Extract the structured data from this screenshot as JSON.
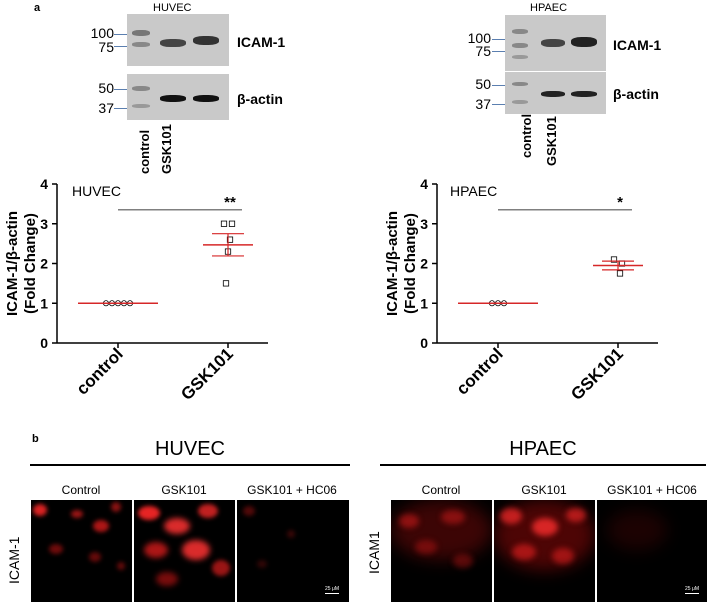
{
  "panel_a": {
    "letter": "a",
    "blots": [
      {
        "cell_line": "HUVEC",
        "icam_markers": [
          "100",
          "75"
        ],
        "actin_markers": [
          "50",
          "37"
        ],
        "icam_label": "ICAM-1",
        "actin_label": "β-actin",
        "lanes": [
          "control",
          "GSK101"
        ]
      },
      {
        "cell_line": "HPAEC",
        "icam_markers": [
          "100",
          "75"
        ],
        "actin_markers": [
          "50",
          "37"
        ],
        "icam_label": "ICAM-1",
        "actin_label": "β-actin",
        "lanes": [
          "control",
          "GSK101"
        ]
      }
    ]
  },
  "chart_data": [
    {
      "type": "scatter",
      "title": "HUVEC",
      "ylabel": "ICAM-1/β-actin (Fold Change)",
      "ylabel_lines": [
        "ICAM-1/β-actin",
        "(Fold Change)"
      ],
      "categories": [
        "control",
        "GSK101"
      ],
      "ylim": [
        0,
        4
      ],
      "yticks": [
        0,
        1,
        2,
        3,
        4
      ],
      "series": [
        {
          "category": "control",
          "points": [
            1,
            1,
            1,
            1,
            1
          ],
          "mean": 1.0,
          "sem": 0
        },
        {
          "category": "GSK101",
          "points": [
            3.0,
            3.0,
            2.6,
            2.3,
            1.5
          ],
          "mean": 2.47,
          "sem": 0.28
        }
      ],
      "significance": "**",
      "colors": {
        "mean_bar": "#d62728",
        "points": "#000000"
      }
    },
    {
      "type": "scatter",
      "title": "HPAEC",
      "ylabel": "ICAM-1/β-actin (Fold Change)",
      "ylabel_lines": [
        "ICAM-1/β-actin",
        "(Fold Change)"
      ],
      "categories": [
        "control",
        "GSK101"
      ],
      "ylim": [
        0,
        4
      ],
      "yticks": [
        0,
        1,
        2,
        3,
        4
      ],
      "series": [
        {
          "category": "control",
          "points": [
            1,
            1,
            1
          ],
          "mean": 1.0,
          "sem": 0
        },
        {
          "category": "GSK101",
          "points": [
            2.1,
            2.0,
            1.75
          ],
          "mean": 1.95,
          "sem": 0.11
        }
      ],
      "significance": "*",
      "colors": {
        "mean_bar": "#d62728",
        "points": "#000000"
      }
    }
  ],
  "panel_b": {
    "letter": "b",
    "groups": [
      {
        "title": "HUVEC",
        "row_label": "ICAM-1",
        "columns": [
          "Control",
          "GSK101",
          "GSK101 + HC06"
        ],
        "scale_bar": "25 μM",
        "intensity": [
          "medium",
          "high",
          "low"
        ]
      },
      {
        "title": "HPAEC",
        "row_label": "ICAM1",
        "columns": [
          "Control",
          "GSK101",
          "GSK101 + HC06"
        ],
        "scale_bar": "25 μM",
        "intensity": [
          "medium",
          "high",
          "low"
        ]
      }
    ],
    "stain_color": "#ff2020"
  }
}
